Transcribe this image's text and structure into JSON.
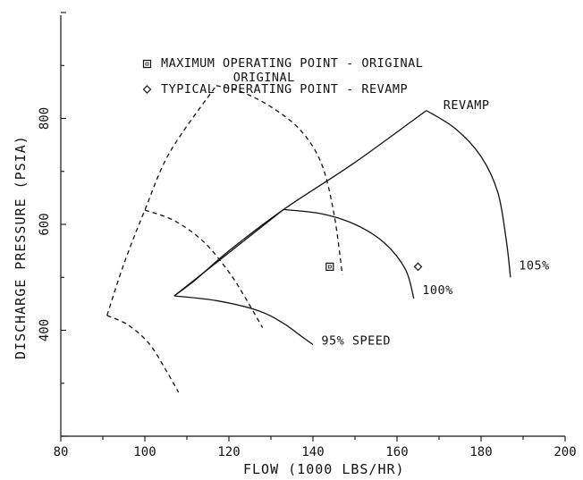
{
  "chart_data": {
    "type": "line",
    "xlabel": "FLOW   (1000 LBS/HR)",
    "ylabel": "DISCHARGE PRESSURE   (PSIA)",
    "xlim": [
      80,
      200
    ],
    "ylim": [
      200,
      1000
    ],
    "x_ticks": [
      "80",
      "100",
      "120",
      "140",
      "160",
      "180",
      "200"
    ],
    "y_ticks": [
      "400",
      "600",
      "800"
    ],
    "x_tick_values": [
      80,
      100,
      120,
      140,
      160,
      180,
      200
    ],
    "y_tick_values": [
      400,
      600,
      800
    ],
    "legend": [
      {
        "marker": "square",
        "label": "MAXIMUM OPERATING POINT - ORIGINAL"
      },
      {
        "marker": "diamond",
        "label": "TYPICAL OPERATING POINT - REVAMP"
      }
    ],
    "series": [
      {
        "style": "dashed",
        "group": "original",
        "points": [
          [
            117,
            862
          ],
          [
            123,
            850
          ],
          [
            130,
            822
          ],
          [
            137,
            778
          ],
          [
            142,
            715
          ],
          [
            145,
            620
          ],
          [
            147,
            505
          ]
        ]
      },
      {
        "style": "dashed",
        "group": "original",
        "points": [
          [
            100,
            627
          ],
          [
            107,
            607
          ],
          [
            114,
            567
          ],
          [
            120,
            510
          ],
          [
            124,
            460
          ],
          [
            128,
            405
          ]
        ]
      },
      {
        "style": "dashed",
        "group": "original",
        "points": [
          [
            91,
            428
          ],
          [
            117,
            862
          ]
        ]
      },
      {
        "style": "dashed",
        "group": "original",
        "points": [
          [
            91,
            428
          ],
          [
            96,
            410
          ],
          [
            101,
            375
          ],
          [
            105,
            325
          ],
          [
            108,
            283
          ]
        ]
      },
      {
        "style": "dashed",
        "group": "original",
        "points": [
          [
            91,
            428
          ],
          [
            95,
            525
          ],
          [
            100,
            627
          ],
          [
            106,
            737
          ],
          [
            117,
            862
          ]
        ]
      },
      {
        "style": "solid",
        "group": "revamp",
        "points": [
          [
            107,
            465
          ],
          [
            112,
            495
          ],
          [
            120,
            550
          ],
          [
            133,
            628
          ],
          [
            150,
            717
          ],
          [
            167,
            815
          ]
        ]
      },
      {
        "style": "solid",
        "group": "revamp",
        "points": [
          [
            167,
            815
          ],
          [
            174,
            780
          ],
          [
            180,
            728
          ],
          [
            184,
            660
          ],
          [
            186,
            570
          ],
          [
            187,
            500
          ]
        ]
      },
      {
        "style": "solid",
        "group": "revamp",
        "points": [
          [
            133,
            628
          ],
          [
            142,
            620
          ],
          [
            150,
            600
          ],
          [
            157,
            565
          ],
          [
            162,
            515
          ],
          [
            164,
            460
          ]
        ]
      },
      {
        "style": "solid",
        "group": "revamp",
        "points": [
          [
            107,
            465
          ],
          [
            117,
            456
          ],
          [
            127,
            437
          ],
          [
            133,
            413
          ],
          [
            137,
            390
          ],
          [
            140,
            373
          ]
        ]
      },
      {
        "style": "solid",
        "group": "revamp",
        "points": [
          [
            107,
            465
          ],
          [
            133,
            628
          ]
        ]
      }
    ],
    "markers": [
      {
        "shape": "square",
        "x": 144,
        "y": 520
      },
      {
        "shape": "diamond",
        "x": 165,
        "y": 520
      }
    ],
    "annotations": [
      {
        "text": "ORIGINAL",
        "x": 121,
        "y": 870
      },
      {
        "text": "REVAMP",
        "x": 171,
        "y": 818
      },
      {
        "text": "105%",
        "x": 189,
        "y": 515
      },
      {
        "text": "100%",
        "x": 166,
        "y": 468
      },
      {
        "text": "95% SPEED",
        "x": 142,
        "y": 373
      }
    ]
  }
}
